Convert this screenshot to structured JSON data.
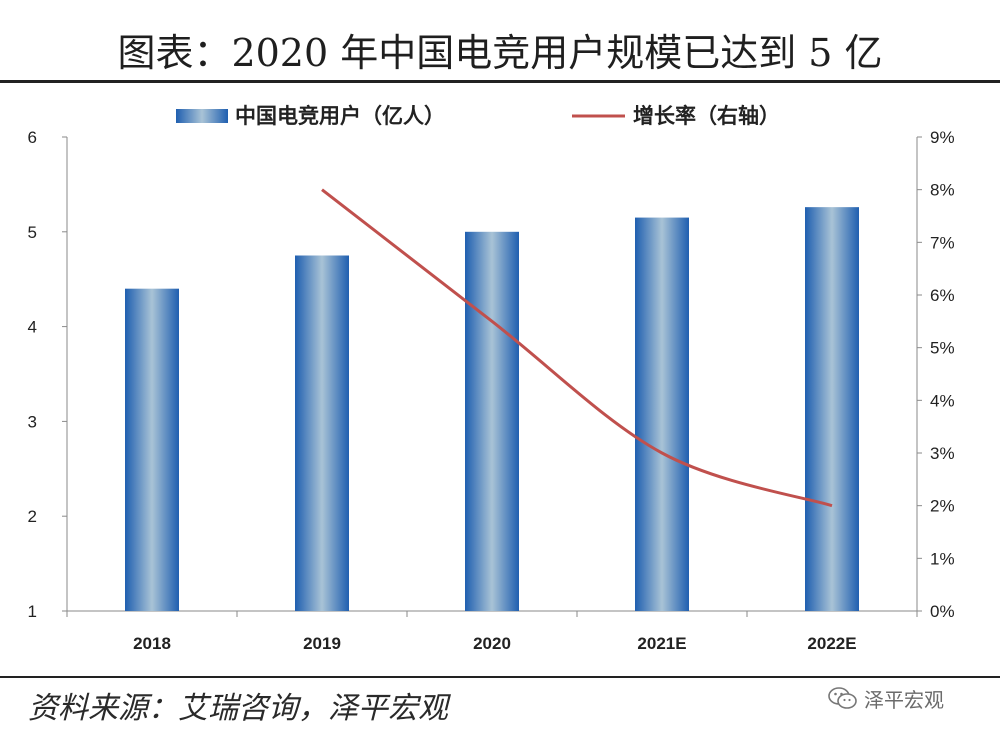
{
  "title": "图表：2020 年中国电竞用户规模已达到 5 亿",
  "source": "资料来源：艾瑞咨询，泽平宏观",
  "watermark": "泽平宏观",
  "chart_data": {
    "type": "bar",
    "categories": [
      "2018",
      "2019",
      "2020",
      "2021E",
      "2022E"
    ],
    "series": [
      {
        "name": "中国电竞用户（亿人）",
        "type": "bar",
        "axis": "left",
        "color": "#2e6fb8",
        "values": [
          4.4,
          4.75,
          5.0,
          5.15,
          5.26
        ]
      },
      {
        "name": "增长率（右轴）",
        "type": "line",
        "axis": "right",
        "color": "#c0504d",
        "values": [
          null,
          0.08,
          0.055,
          0.03,
          0.02
        ]
      }
    ],
    "y_left": {
      "lim": [
        1,
        6
      ],
      "ticks": [
        "1",
        "2",
        "3",
        "4",
        "5",
        "6"
      ]
    },
    "y_right": {
      "lim": [
        0,
        0.09
      ],
      "ticks": [
        "0%",
        "1%",
        "2%",
        "3%",
        "4%",
        "5%",
        "6%",
        "7%",
        "8%",
        "9%"
      ]
    },
    "grid": false,
    "legend_position": "top-center"
  }
}
